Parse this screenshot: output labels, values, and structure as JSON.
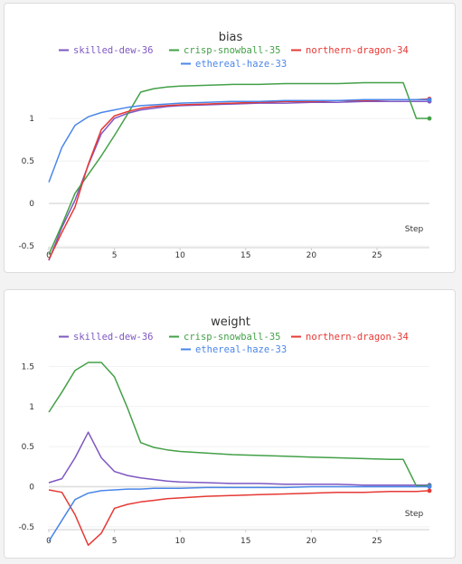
{
  "chart_data": [
    {
      "type": "line",
      "title": "bias",
      "xlabel": "Step",
      "ylabel": "",
      "xlim": [
        0,
        29
      ],
      "ylim": [
        -0.7,
        1.5
      ],
      "x_ticks": [
        "0",
        "5",
        "10",
        "15",
        "20",
        "25"
      ],
      "y_ticks": [
        "1",
        "0.5",
        "0",
        "-0.5"
      ],
      "legend_position": "top",
      "series": [
        {
          "name": "skilled-dew-36",
          "color": "#7e57c2",
          "x": [
            0,
            1,
            2,
            3,
            4,
            5,
            6,
            7,
            8,
            9,
            10,
            12,
            14,
            16,
            18,
            20,
            22,
            24,
            26,
            28,
            29
          ],
          "y": [
            -0.67,
            -0.28,
            0.04,
            0.45,
            0.82,
            1.0,
            1.06,
            1.1,
            1.12,
            1.14,
            1.15,
            1.16,
            1.17,
            1.18,
            1.18,
            1.19,
            1.19,
            1.2,
            1.2,
            1.2,
            1.2
          ]
        },
        {
          "name": "crisp-snowball-35",
          "color": "#43a047",
          "x": [
            0,
            1,
            2,
            3,
            4,
            5,
            6,
            7,
            8,
            9,
            10,
            12,
            14,
            16,
            18,
            20,
            22,
            24,
            26,
            27,
            28,
            29
          ],
          "y": [
            -0.6,
            -0.25,
            0.12,
            0.34,
            0.56,
            0.8,
            1.05,
            1.31,
            1.35,
            1.37,
            1.38,
            1.39,
            1.4,
            1.4,
            1.41,
            1.41,
            1.41,
            1.42,
            1.42,
            1.42,
            1.0,
            1.0
          ]
        },
        {
          "name": "northern-dragon-34",
          "color": "#e53935",
          "x": [
            0,
            1,
            2,
            3,
            4,
            5,
            6,
            7,
            8,
            9,
            10,
            12,
            14,
            16,
            18,
            20,
            22,
            24,
            26,
            28,
            29
          ],
          "y": [
            -0.66,
            -0.34,
            -0.04,
            0.46,
            0.87,
            1.03,
            1.08,
            1.12,
            1.14,
            1.15,
            1.16,
            1.17,
            1.18,
            1.19,
            1.2,
            1.2,
            1.21,
            1.21,
            1.22,
            1.22,
            1.23
          ]
        },
        {
          "name": "ethereal-haze-33",
          "color": "#4a86e8",
          "x": [
            0,
            1,
            2,
            3,
            4,
            5,
            6,
            7,
            8,
            9,
            10,
            12,
            14,
            16,
            18,
            20,
            22,
            24,
            26,
            28,
            29
          ],
          "y": [
            0.25,
            0.66,
            0.92,
            1.02,
            1.07,
            1.1,
            1.13,
            1.15,
            1.16,
            1.17,
            1.18,
            1.19,
            1.2,
            1.2,
            1.21,
            1.21,
            1.21,
            1.22,
            1.22,
            1.22,
            1.22
          ]
        }
      ]
    },
    {
      "type": "line",
      "title": "weight",
      "xlabel": "Step",
      "ylabel": "",
      "xlim": [
        0,
        29
      ],
      "ylim": [
        -0.75,
        1.55
      ],
      "x_ticks": [
        "0",
        "5",
        "10",
        "15",
        "20",
        "25"
      ],
      "y_ticks": [
        "1.5",
        "1",
        "0.5",
        "0",
        "-0.5"
      ],
      "legend_position": "top",
      "series": [
        {
          "name": "skilled-dew-36",
          "color": "#7e57c2",
          "x": [
            0,
            1,
            2,
            3,
            4,
            5,
            6,
            7,
            8,
            9,
            10,
            12,
            14,
            16,
            18,
            20,
            22,
            24,
            26,
            28,
            29
          ],
          "y": [
            0.05,
            0.1,
            0.36,
            0.68,
            0.36,
            0.19,
            0.14,
            0.11,
            0.09,
            0.07,
            0.06,
            0.05,
            0.04,
            0.04,
            0.03,
            0.03,
            0.03,
            0.02,
            0.02,
            0.02,
            0.02
          ]
        },
        {
          "name": "crisp-snowball-35",
          "color": "#43a047",
          "x": [
            0,
            1,
            2,
            3,
            4,
            5,
            6,
            7,
            8,
            9,
            10,
            12,
            14,
            16,
            18,
            20,
            22,
            24,
            26,
            27,
            28,
            29
          ],
          "y": [
            0.93,
            1.18,
            1.45,
            1.55,
            1.55,
            1.37,
            0.98,
            0.55,
            0.49,
            0.46,
            0.44,
            0.42,
            0.4,
            0.39,
            0.38,
            0.37,
            0.36,
            0.35,
            0.34,
            0.34,
            0.01,
            0.01
          ]
        },
        {
          "name": "northern-dragon-34",
          "color": "#e53935",
          "x": [
            0,
            1,
            2,
            3,
            4,
            5,
            6,
            7,
            8,
            9,
            10,
            12,
            14,
            16,
            18,
            20,
            22,
            24,
            26,
            28,
            29
          ],
          "y": [
            -0.04,
            -0.07,
            -0.35,
            -0.73,
            -0.58,
            -0.27,
            -0.22,
            -0.19,
            -0.17,
            -0.15,
            -0.14,
            -0.12,
            -0.11,
            -0.1,
            -0.09,
            -0.08,
            -0.07,
            -0.07,
            -0.06,
            -0.06,
            -0.05
          ]
        },
        {
          "name": "ethereal-haze-33",
          "color": "#4a86e8",
          "x": [
            0,
            1,
            2,
            3,
            4,
            5,
            6,
            7,
            8,
            9,
            10,
            12,
            14,
            16,
            18,
            20,
            22,
            24,
            26,
            28,
            29
          ],
          "y": [
            -0.68,
            -0.42,
            -0.16,
            -0.08,
            -0.05,
            -0.04,
            -0.03,
            -0.03,
            -0.02,
            -0.02,
            -0.02,
            -0.01,
            -0.01,
            -0.01,
            -0.01,
            0.0,
            0.0,
            0.0,
            0.0,
            0.0,
            0.0
          ]
        }
      ]
    }
  ]
}
